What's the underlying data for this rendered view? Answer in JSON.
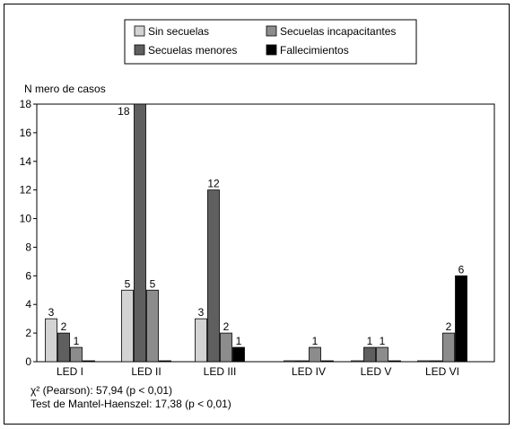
{
  "chart_data": {
    "type": "bar",
    "ylabel": "N mero de casos",
    "ylim": [
      0,
      18
    ],
    "yticks": [
      0,
      2,
      4,
      6,
      8,
      10,
      12,
      14,
      16,
      18
    ],
    "categories": [
      "LED I",
      "LED II",
      "LED III",
      "LED IV",
      "LED V",
      "LED VI"
    ],
    "series": [
      {
        "name": "Sin secuelas",
        "color": "#d3d3d3",
        "values": [
          3,
          5,
          3,
          0,
          0,
          0
        ],
        "labels": [
          "3",
          "5",
          "3",
          "",
          "",
          ""
        ]
      },
      {
        "name": "Secuelas menores",
        "color": "#5f5f5f",
        "values": [
          2,
          18,
          12,
          0,
          1,
          0
        ],
        "labels": [
          "2",
          "18",
          "12",
          "",
          "1",
          ""
        ]
      },
      {
        "name": "Secuelas incapacitantes",
        "color": "#8c8c8c",
        "values": [
          1,
          5,
          2,
          1,
          1,
          2
        ],
        "labels": [
          "1",
          "5",
          "2",
          "1",
          "1",
          "2"
        ]
      },
      {
        "name": "Fallecimientos",
        "color": "#000000",
        "values": [
          0,
          0,
          1,
          0,
          0,
          6
        ],
        "labels": [
          "",
          "",
          "1",
          "",
          "",
          "6"
        ]
      }
    ],
    "legend_position": "top-center",
    "grid": false
  },
  "stats": {
    "line1": "χ² (Pearson): 57,94  (p < 0,01)",
    "line2": "Test de Mantel-Haenszel: 17,38 (p < 0,01)"
  }
}
